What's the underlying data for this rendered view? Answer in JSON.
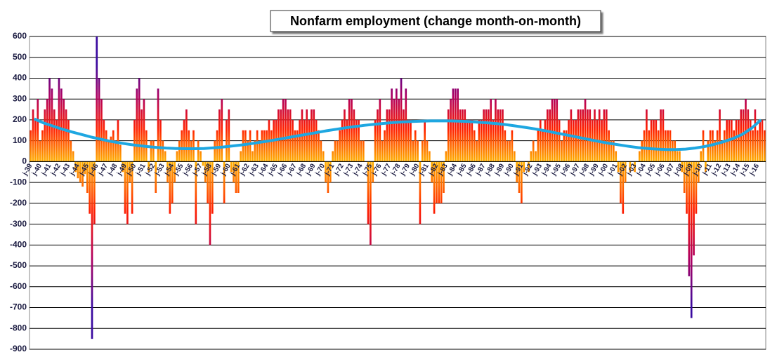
{
  "chart_data": {
    "type": "bar",
    "title": "Nonfarm employment (change month-on-month)",
    "ylim": [
      -900,
      600
    ],
    "yticks": [
      -900,
      -800,
      -700,
      -600,
      -500,
      -400,
      -300,
      -200,
      -100,
      0,
      100,
      200,
      300,
      400,
      500,
      600
    ],
    "grid": true,
    "categories": [
      "j-39",
      null,
      null,
      null,
      "j-40",
      null,
      null,
      null,
      "j-41",
      null,
      null,
      null,
      "j-42",
      null,
      null,
      null,
      "j-43",
      null,
      null,
      null,
      "j-44",
      null,
      null,
      null,
      "j-45",
      null,
      null,
      null,
      "j-46",
      null,
      null,
      null,
      "j-47",
      null,
      null,
      null,
      "j-48",
      null,
      null,
      null,
      "j-49",
      null,
      null,
      null,
      "j-50",
      null,
      null,
      null,
      "j-51",
      null,
      null,
      null,
      "j-52",
      null,
      null,
      null,
      "j-53",
      null,
      null,
      null,
      "j-54",
      null,
      null,
      null,
      "j-55",
      null,
      null,
      null,
      "j-56",
      null,
      null,
      null,
      "j-57",
      null,
      null,
      null,
      "j-58",
      null,
      null,
      null,
      "j-59",
      null,
      null,
      null,
      "j-60",
      null,
      null,
      null,
      "j-61",
      null,
      null,
      null,
      "j-62",
      null,
      null,
      null,
      "j-63",
      null,
      null,
      null,
      "j-64",
      null,
      null,
      null,
      "j-65",
      null,
      null,
      null,
      "j-66",
      null,
      null,
      null,
      "j-67",
      null,
      null,
      null,
      "j-68",
      null,
      null,
      null,
      "j-69",
      null,
      null,
      null,
      "j-70",
      null,
      null,
      null,
      "j-71",
      null,
      null,
      null,
      "j-72",
      null,
      null,
      null,
      "j-73",
      null,
      null,
      null,
      "j-74",
      null,
      null,
      null,
      "j-75",
      null,
      null,
      null,
      "j-76",
      null,
      null,
      null,
      "j-77",
      null,
      null,
      null,
      "j-78",
      null,
      null,
      null,
      "j-79",
      null,
      null,
      null,
      "j-80",
      null,
      null,
      null,
      "j-81",
      null,
      null,
      null,
      "j-82",
      null,
      null,
      null,
      "j-83",
      null,
      null,
      null,
      "j-84",
      null,
      null,
      null,
      "j-85",
      null,
      null,
      null,
      "j-86",
      null,
      null,
      null,
      "j-87",
      null,
      null,
      null,
      "j-88",
      null,
      null,
      null,
      "j-89",
      null,
      null,
      null,
      "j-90",
      null,
      null,
      null,
      "j-91",
      null,
      null,
      null,
      "j-92",
      null,
      null,
      null,
      "j-93",
      null,
      null,
      null,
      "j-94",
      null,
      null,
      null,
      "j-95",
      null,
      null,
      null,
      "j-96",
      null,
      null,
      null,
      "j-97",
      null,
      null,
      null,
      "j-98",
      null,
      null,
      null,
      "j-99",
      null,
      null,
      null,
      "j-00",
      null,
      null,
      null,
      "j-01",
      null,
      null,
      null,
      "j-02",
      null,
      null,
      null,
      "j-03",
      null,
      null,
      null,
      "j-04",
      null,
      null,
      null,
      "j-05",
      null,
      null,
      null,
      "j-06",
      null,
      null,
      null,
      "j-07",
      null,
      null,
      null,
      "j-08",
      null,
      null,
      null,
      "j-09",
      null,
      null,
      null,
      "j-10",
      null,
      null,
      null,
      "j-11",
      null,
      null,
      null,
      "j-12",
      null,
      null,
      null,
      "j-13",
      null,
      null,
      null,
      "j-14",
      null,
      null,
      null,
      "j-15",
      null,
      null,
      null,
      "j-16",
      null,
      null,
      null
    ],
    "series": [
      {
        "color_stops": [
          "#ffb000",
          "#ff2000",
          "#b00060",
          "#3a0aa0"
        ],
        "values": [
          150,
          250,
          200,
          300,
          100,
          150,
          250,
          300,
          400,
          350,
          250,
          200,
          400,
          350,
          300,
          250,
          200,
          100,
          50,
          -50,
          -80,
          -100,
          -120,
          -60,
          -150,
          -250,
          -850,
          -300,
          600,
          400,
          300,
          200,
          150,
          100,
          120,
          150,
          100,
          200,
          80,
          -50,
          -250,
          -300,
          -100,
          -250,
          200,
          350,
          400,
          250,
          300,
          150,
          -50,
          100,
          100,
          -150,
          350,
          200,
          100,
          50,
          -100,
          -250,
          -200,
          -100,
          50,
          100,
          150,
          200,
          250,
          150,
          100,
          150,
          -300,
          100,
          50,
          -20,
          -100,
          -200,
          -400,
          -250,
          100,
          150,
          250,
          300,
          -200,
          200,
          250,
          -50,
          -100,
          -150,
          -150,
          50,
          150,
          150,
          100,
          150,
          50,
          100,
          150,
          100,
          150,
          150,
          150,
          200,
          150,
          200,
          200,
          250,
          250,
          300,
          300,
          250,
          250,
          200,
          150,
          150,
          200,
          250,
          200,
          250,
          200,
          250,
          250,
          200,
          150,
          100,
          50,
          -100,
          -150,
          -100,
          50,
          100,
          100,
          150,
          200,
          250,
          200,
          300,
          300,
          250,
          200,
          200,
          100,
          100,
          0,
          -300,
          -400,
          -100,
          200,
          250,
          300,
          100,
          150,
          250,
          250,
          350,
          300,
          350,
          300,
          400,
          250,
          350,
          200,
          200,
          100,
          150,
          100,
          -300,
          100,
          200,
          100,
          50,
          -100,
          -250,
          -200,
          -200,
          -200,
          -150,
          50,
          250,
          300,
          350,
          350,
          350,
          250,
          250,
          250,
          200,
          200,
          200,
          150,
          100,
          200,
          200,
          250,
          250,
          250,
          300,
          200,
          300,
          250,
          250,
          250,
          150,
          100,
          100,
          150,
          50,
          -100,
          -150,
          -200,
          -50,
          0,
          -50,
          50,
          100,
          50,
          150,
          200,
          150,
          200,
          250,
          250,
          300,
          300,
          300,
          200,
          100,
          150,
          150,
          200,
          250,
          200,
          200,
          250,
          250,
          250,
          300,
          250,
          250,
          200,
          250,
          200,
          250,
          200,
          250,
          250,
          150,
          100,
          100,
          50,
          -50,
          -200,
          -250,
          -100,
          0,
          -50,
          0,
          -50,
          0,
          50,
          100,
          150,
          250,
          150,
          200,
          200,
          200,
          150,
          250,
          250,
          150,
          150,
          150,
          100,
          100,
          50,
          50,
          -50,
          -150,
          -250,
          -550,
          -750,
          -450,
          -250,
          -100,
          50,
          150,
          -50,
          100,
          150,
          150,
          100,
          150,
          250,
          100,
          150,
          200,
          200,
          200,
          150,
          200,
          200,
          250,
          250,
          300,
          250,
          200,
          150,
          250,
          150,
          200,
          200,
          150
        ]
      }
    ],
    "trend": {
      "color": "#1ea7e1",
      "values": [
        205,
        185,
        170,
        155,
        142,
        130,
        118,
        108,
        98,
        90,
        83,
        77,
        72,
        68,
        65,
        63,
        62,
        62,
        63,
        66,
        70,
        75,
        80,
        86,
        93,
        100,
        108,
        116,
        124,
        132,
        140,
        148,
        155,
        162,
        168,
        174,
        179,
        183,
        187,
        190,
        192,
        194,
        195,
        195,
        195,
        194,
        192,
        189,
        186,
        182,
        177,
        171,
        164,
        157,
        149,
        140,
        131,
        122,
        113,
        104,
        95,
        87,
        80,
        73,
        67,
        63,
        60,
        58,
        58,
        60,
        65,
        72,
        82,
        95,
        110,
        130,
        160,
        200
      ]
    }
  }
}
